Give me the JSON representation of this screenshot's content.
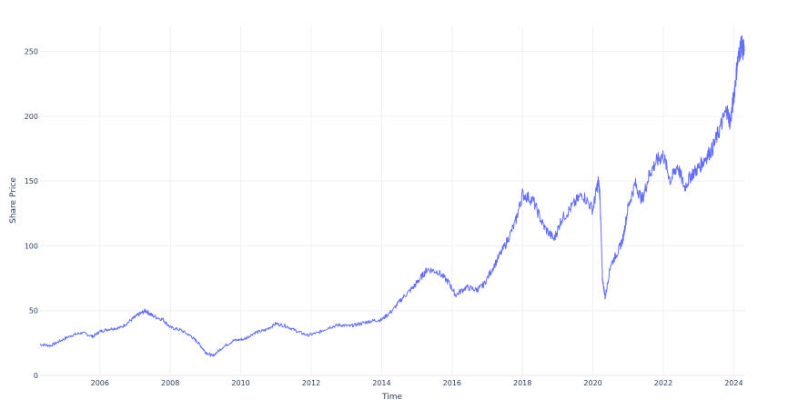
{
  "chart_data": {
    "type": "line",
    "title": "",
    "xlabel": "Time",
    "ylabel": "Share Price",
    "xlim": [
      2004.3,
      2024.3
    ],
    "ylim": [
      0,
      270
    ],
    "x_ticks": [
      2006,
      2008,
      2010,
      2012,
      2014,
      2016,
      2018,
      2020,
      2022,
      2024
    ],
    "y_ticks": [
      0,
      50,
      100,
      150,
      200,
      250
    ],
    "grid": true,
    "legend": "none",
    "line_color": "#636efa",
    "series": [
      {
        "x": [
          2004.3,
          2004.6,
          2004.9,
          2005.2,
          2005.5,
          2005.8,
          2006.0,
          2006.3,
          2006.6,
          2006.9,
          2007.1,
          2007.3,
          2007.5,
          2007.8,
          2008.0,
          2008.3,
          2008.6,
          2008.8,
          2009.0,
          2009.2,
          2009.5,
          2009.8,
          2010.1,
          2010.4,
          2010.7,
          2011.0,
          2011.3,
          2011.6,
          2011.9,
          2012.2,
          2012.5,
          2012.8,
          2013.1,
          2013.4,
          2013.7,
          2014.0,
          2014.3,
          2014.6,
          2014.9,
          2015.1,
          2015.3,
          2015.6,
          2015.9,
          2016.1,
          2016.4,
          2016.7,
          2016.9,
          2017.2,
          2017.5,
          2017.8,
          2018.0,
          2018.3,
          2018.6,
          2018.9,
          2019.1,
          2019.4,
          2019.7,
          2020.0,
          2020.15,
          2020.2,
          2020.27,
          2020.35,
          2020.5,
          2020.7,
          2020.85,
          2021.0,
          2021.2,
          2021.4,
          2021.6,
          2021.8,
          2022.0,
          2022.2,
          2022.4,
          2022.6,
          2022.8,
          2023.0,
          2023.2,
          2023.4,
          2023.6,
          2023.8,
          2023.9,
          2024.0,
          2024.1,
          2024.2,
          2024.3
        ],
        "y": [
          24,
          23,
          27,
          31,
          33,
          30,
          34,
          36,
          37,
          43,
          47,
          50,
          46,
          43,
          37,
          35,
          30,
          25,
          18,
          15,
          22,
          27,
          28,
          33,
          35,
          40,
          38,
          34,
          31,
          33,
          37,
          39,
          38,
          40,
          42,
          43,
          50,
          60,
          68,
          75,
          82,
          80,
          72,
          62,
          68,
          66,
          70,
          85,
          100,
          118,
          140,
          135,
          115,
          105,
          120,
          130,
          140,
          128,
          150,
          140,
          75,
          60,
          85,
          95,
          105,
          130,
          148,
          135,
          155,
          165,
          170,
          150,
          162,
          145,
          155,
          160,
          168,
          175,
          190,
          205,
          195,
          215,
          240,
          255,
          250
        ]
      }
    ]
  }
}
